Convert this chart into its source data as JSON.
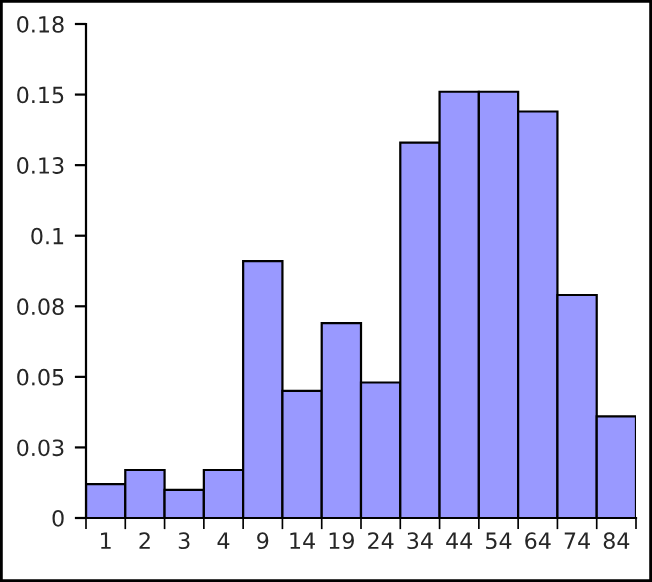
{
  "chart_data": {
    "type": "bar",
    "categories": [
      "1",
      "2",
      "3",
      "4",
      "9",
      "14",
      "19",
      "24",
      "34",
      "44",
      "54",
      "64",
      "74",
      "84"
    ],
    "values": [
      0.012,
      0.017,
      0.01,
      0.017,
      0.091,
      0.045,
      0.069,
      0.048,
      0.133,
      0.151,
      0.151,
      0.144,
      0.079,
      0.036
    ],
    "color": "#9999ff",
    "ylim": [
      0,
      0.175
    ],
    "yticks": [
      0,
      {
        "value": 0.025,
        "label": "0.03"
      },
      0.05,
      {
        "value": 0.075,
        "label": "0.08"
      },
      0.1,
      {
        "value": 0.125,
        "label": "0.13"
      },
      0.15,
      {
        "value": 0.175,
        "label": "0.18"
      }
    ],
    "grid": false,
    "legend": false
  }
}
